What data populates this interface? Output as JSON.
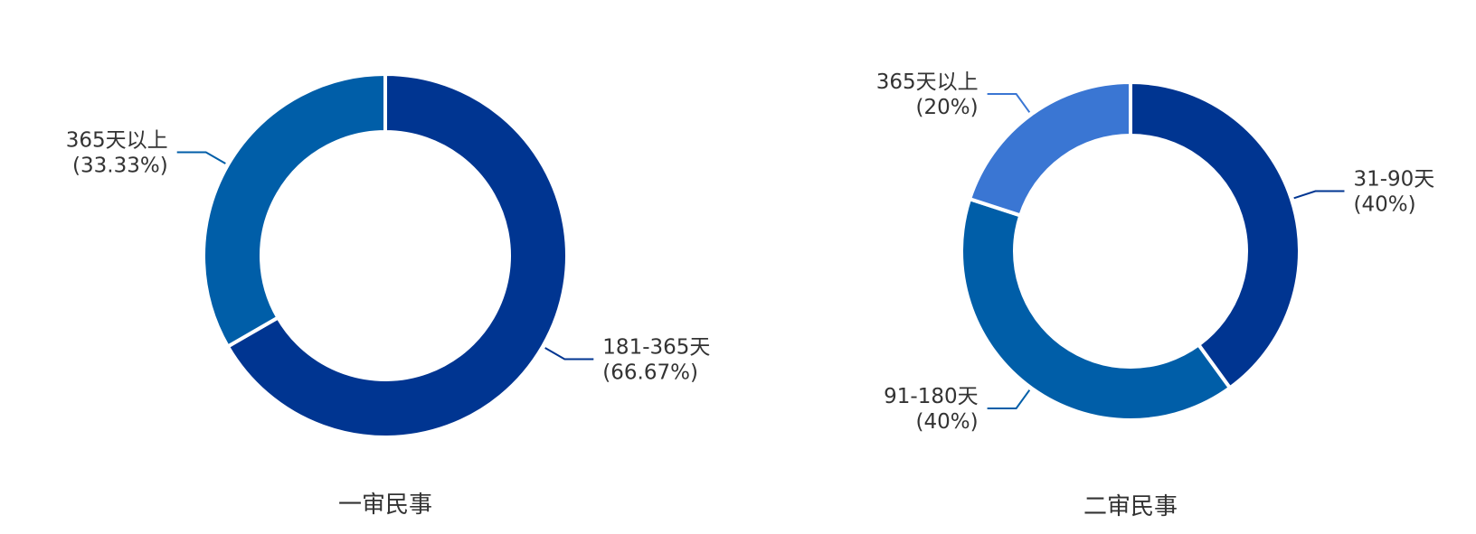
{
  "colors": {
    "background": "#ffffff",
    "text": "#333333",
    "palette": [
      "#003591",
      "#005ea8",
      "#3a76d3"
    ]
  },
  "chart_data": [
    {
      "type": "pie",
      "variant": "donut",
      "title": "一审民事",
      "slices": [
        {
          "label": "181-365天",
          "percent_label": "(66.67%)",
          "value": 66.67,
          "color": "#003591"
        },
        {
          "label": "365天以上",
          "percent_label": "(33.33%)",
          "value": 33.33,
          "color": "#005ea8"
        }
      ]
    },
    {
      "type": "pie",
      "variant": "donut",
      "title": "二审民事",
      "slices": [
        {
          "label": "31-90天",
          "percent_label": "(40%)",
          "value": 40,
          "color": "#003591"
        },
        {
          "label": "91-180天",
          "percent_label": "(40%)",
          "value": 40,
          "color": "#005ea8"
        },
        {
          "label": "365天以上",
          "percent_label": "(20%)",
          "value": 20,
          "color": "#3a76d3"
        }
      ]
    }
  ]
}
